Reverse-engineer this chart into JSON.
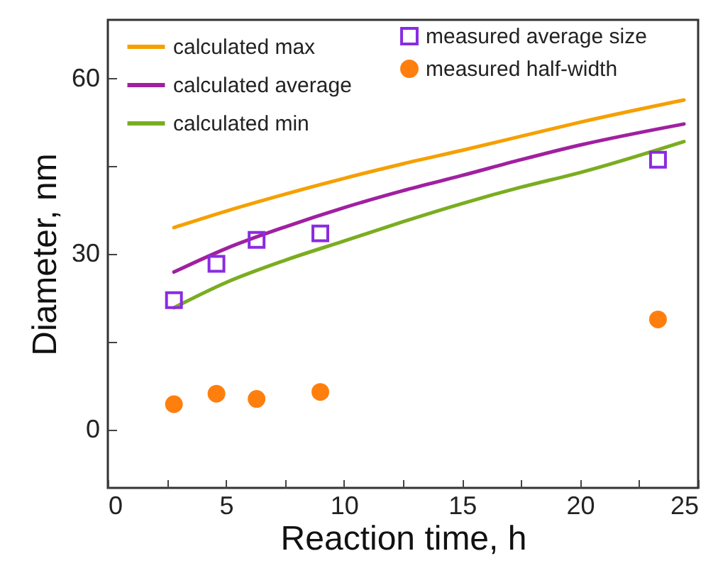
{
  "chart_data": {
    "type": "line",
    "xlabel": "Reaction time, h",
    "ylabel": "Diameter, nm",
    "xlim": [
      0,
      25
    ],
    "ylim": [
      -10,
      70
    ],
    "xticks": [
      0,
      {
        "value": 2.5,
        "label": null
      },
      5,
      {
        "value": 7.5,
        "label": null
      },
      10,
      {
        "value": 12.5,
        "label": null
      },
      15,
      {
        "value": 17.5,
        "label": null
      },
      20,
      {
        "value": 22.5,
        "label": null
      },
      25
    ],
    "yticks": [
      0,
      {
        "value": 15,
        "label": null
      },
      30,
      {
        "value": 45,
        "label": null
      },
      60
    ],
    "legend": "top",
    "grid": false,
    "series": [
      {
        "name": "calculated max",
        "color": "#f5a000",
        "line_style": "solid",
        "x": [
          2.8,
          5,
          7.5,
          10,
          12.5,
          15,
          17.5,
          20,
          24.4
        ],
        "values": [
          34.5,
          37.3,
          40.2,
          42.9,
          45.4,
          47.7,
          50.1,
          52.5,
          56.3
        ]
      },
      {
        "name": "calculated  average",
        "color": "#a020a0",
        "line_style": "solid",
        "x": [
          2.8,
          5,
          7.5,
          10,
          12.5,
          15,
          17.5,
          20,
          24.4
        ],
        "values": [
          26.9,
          30.9,
          34.6,
          37.9,
          40.8,
          43.4,
          46.1,
          48.6,
          52.2
        ]
      },
      {
        "name": "calculated min",
        "color": "#7aad20",
        "line_style": "solid",
        "x": [
          2.8,
          5,
          7.5,
          10,
          12.5,
          15,
          17.5,
          20,
          24.4
        ],
        "values": [
          20.8,
          25.1,
          28.9,
          32.2,
          35.5,
          38.6,
          41.4,
          43.9,
          49.2
        ]
      },
      {
        "name": "measured average size",
        "type": "scatter",
        "marker": "square",
        "color": "#8a2be2",
        "x": [
          2.8,
          4.6,
          6.3,
          9.0,
          23.3
        ],
        "values": [
          22.1,
          28.3,
          32.4,
          33.5,
          46.1
        ]
      },
      {
        "name": "measured half-width",
        "type": "scatter",
        "marker": "circle",
        "color": "#ff7f0e",
        "x": [
          2.8,
          4.6,
          6.3,
          9.0,
          23.3
        ],
        "values": [
          4.3,
          6.1,
          5.2,
          6.4,
          18.8
        ]
      }
    ]
  }
}
